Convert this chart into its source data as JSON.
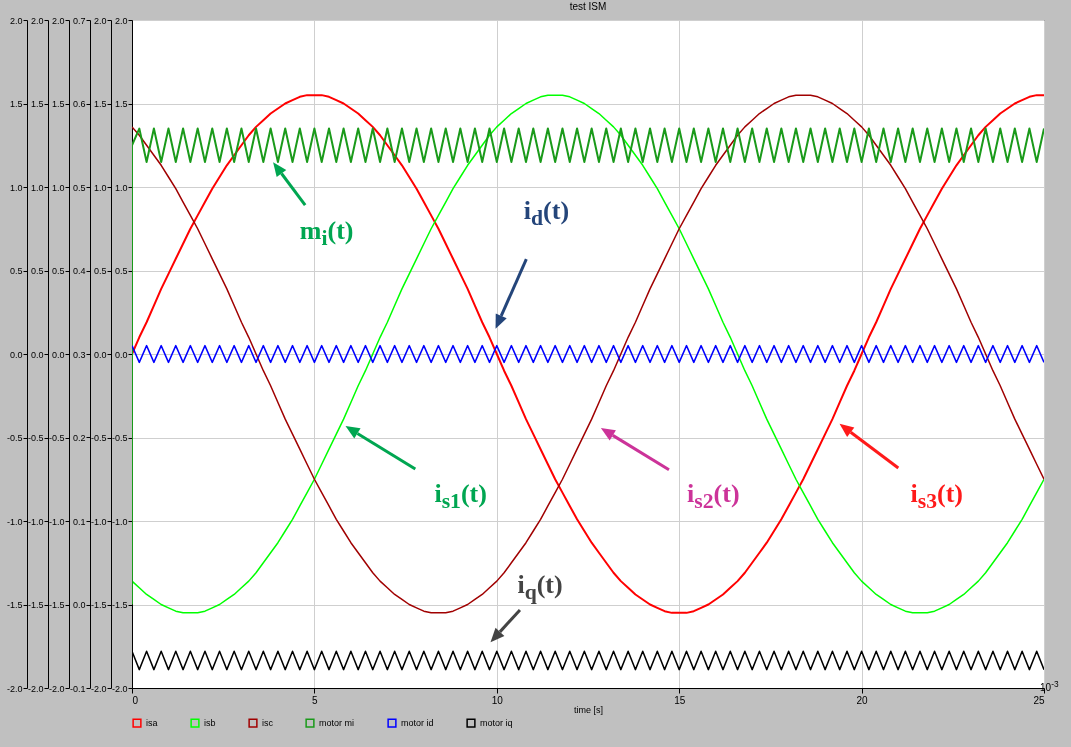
{
  "chart_data": {
    "type": "line",
    "title": "test ISM",
    "xlabel": "time [s]",
    "x": [
      0,
      0.2,
      0.4,
      0.6,
      0.8,
      1,
      1.2,
      1.4,
      1.6,
      1.8,
      2,
      2.2,
      2.4,
      2.6,
      2.8,
      3,
      3.2,
      3.4,
      3.6,
      3.8,
      4,
      4.2,
      4.4,
      4.6,
      4.8,
      5,
      5.2,
      5.4,
      5.6,
      5.8,
      6,
      6.2,
      6.4,
      6.6,
      6.8,
      7,
      7.2,
      7.4,
      7.6,
      7.8,
      8,
      8.2,
      8.4,
      8.6,
      8.8,
      9,
      9.2,
      9.4,
      9.6,
      9.8,
      10,
      10.2,
      10.4,
      10.6,
      10.8,
      11,
      11.2,
      11.4,
      11.6,
      11.8,
      12,
      12.2,
      12.4,
      12.6,
      12.8,
      13,
      13.2,
      13.4,
      13.6,
      13.8,
      14,
      14.2,
      14.4,
      14.6,
      14.8,
      15,
      15.2,
      15.4,
      15.6,
      15.8,
      16,
      16.2,
      16.4,
      16.6,
      16.8,
      17,
      17.2,
      17.4,
      17.6,
      17.8,
      18,
      18.2,
      18.4,
      18.6,
      18.8,
      19,
      19.2,
      19.4,
      19.6,
      19.8,
      20,
      20.2,
      20.4,
      20.6,
      20.8,
      21,
      21.2,
      21.4,
      21.6,
      21.8,
      22,
      22.2,
      22.4,
      22.6,
      22.8,
      23,
      23.2,
      23.4,
      23.6,
      23.8,
      24,
      24.2,
      24.4,
      24.6,
      24.8,
      25
    ],
    "xlim": [
      0,
      25
    ],
    "xticks": [
      0,
      5,
      10,
      15,
      20,
      25
    ],
    "ylim": [
      -2,
      2
    ],
    "yticks": [
      {
        "value": -2,
        "label": "-2.0"
      },
      {
        "value": -1.5,
        "label": "-1.5"
      },
      {
        "value": -1,
        "label": "-1.0"
      },
      {
        "value": -0.5,
        "label": "-0.5"
      },
      {
        "value": 0,
        "label": "0.0"
      },
      {
        "value": 0.5,
        "label": "0.5"
      },
      {
        "value": 1,
        "label": "1.0"
      },
      {
        "value": 1.5,
        "label": "1.5"
      },
      {
        "value": 2,
        "label": "2.0"
      }
    ],
    "y2lim": [
      -0.1,
      0.7
    ],
    "y2ticks": [
      -0.1,
      {
        "value": 0,
        "label": "0.0"
      },
      0.1,
      0.2,
      0.3,
      0.4,
      0.5,
      0.6,
      0.7
    ],
    "grid": true,
    "legend": "bottom",
    "series": [
      {
        "name": "isa",
        "color": "#ff0000",
        "axis": "y",
        "values": [
          0,
          0.1,
          0.19,
          0.29,
          0.39,
          0.48,
          0.57,
          0.66,
          0.75,
          0.83,
          0.91,
          0.99,
          1.06,
          1.13,
          1.19,
          1.25,
          1.31,
          1.36,
          1.4,
          1.44,
          1.47,
          1.5,
          1.52,
          1.54,
          1.55,
          1.55,
          1.55,
          1.54,
          1.52,
          1.5,
          1.47,
          1.44,
          1.4,
          1.36,
          1.31,
          1.25,
          1.19,
          1.13,
          1.06,
          0.99,
          0.91,
          0.83,
          0.75,
          0.66,
          0.57,
          0.48,
          0.39,
          0.29,
          0.19,
          0.1,
          0,
          -0.1,
          -0.19,
          -0.29,
          -0.39,
          -0.48,
          -0.57,
          -0.66,
          -0.75,
          -0.83,
          -0.91,
          -0.99,
          -1.06,
          -1.13,
          -1.19,
          -1.25,
          -1.31,
          -1.36,
          -1.4,
          -1.44,
          -1.47,
          -1.5,
          -1.52,
          -1.54,
          -1.55,
          -1.55,
          -1.55,
          -1.54,
          -1.52,
          -1.5,
          -1.47,
          -1.44,
          -1.4,
          -1.36,
          -1.31,
          -1.25,
          -1.19,
          -1.13,
          -1.06,
          -0.99,
          -0.91,
          -0.83,
          -0.75,
          -0.66,
          -0.57,
          -0.48,
          -0.39,
          -0.29,
          -0.19,
          -0.1,
          0,
          0.1,
          0.19,
          0.29,
          0.39,
          0.48,
          0.57,
          0.66,
          0.75,
          0.83,
          0.91,
          0.99,
          1.06,
          1.13,
          1.19,
          1.25,
          1.31,
          1.36,
          1.4,
          1.44,
          1.47,
          1.5,
          1.52,
          1.54,
          1.55,
          1.55
        ]
      },
      {
        "name": "isb",
        "color": "#00ff00",
        "axis": "y",
        "values": [
          -1.36,
          -1.4,
          -1.44,
          -1.47,
          -1.5,
          -1.52,
          -1.54,
          -1.55,
          -1.55,
          -1.55,
          -1.54,
          -1.52,
          -1.5,
          -1.47,
          -1.44,
          -1.4,
          -1.36,
          -1.31,
          -1.25,
          -1.19,
          -1.13,
          -1.06,
          -0.99,
          -0.91,
          -0.83,
          -0.75,
          -0.66,
          -0.57,
          -0.48,
          -0.39,
          -0.29,
          -0.19,
          -0.1,
          0,
          0.1,
          0.19,
          0.29,
          0.39,
          0.48,
          0.57,
          0.66,
          0.75,
          0.83,
          0.91,
          0.99,
          1.06,
          1.13,
          1.19,
          1.25,
          1.31,
          1.36,
          1.4,
          1.44,
          1.47,
          1.5,
          1.52,
          1.54,
          1.55,
          1.55,
          1.55,
          1.54,
          1.52,
          1.5,
          1.47,
          1.44,
          1.4,
          1.36,
          1.31,
          1.25,
          1.19,
          1.13,
          1.06,
          0.99,
          0.91,
          0.83,
          0.75,
          0.66,
          0.57,
          0.48,
          0.39,
          0.29,
          0.19,
          0.1,
          0,
          -0.1,
          -0.19,
          -0.29,
          -0.39,
          -0.48,
          -0.57,
          -0.66,
          -0.75,
          -0.83,
          -0.91,
          -0.99,
          -1.06,
          -1.13,
          -1.19,
          -1.25,
          -1.31,
          -1.36,
          -1.4,
          -1.44,
          -1.47,
          -1.5,
          -1.52,
          -1.54,
          -1.55,
          -1.55,
          -1.55,
          -1.54,
          -1.52,
          -1.5,
          -1.47,
          -1.44,
          -1.4,
          -1.36,
          -1.31,
          -1.25,
          -1.19,
          -1.13,
          -1.06,
          -0.99,
          -0.91,
          -0.83,
          -0.75
        ]
      },
      {
        "name": "isc",
        "color": "#a00000",
        "axis": "y",
        "values": [
          1.36,
          1.31,
          1.25,
          1.19,
          1.13,
          1.06,
          0.99,
          0.91,
          0.83,
          0.75,
          0.66,
          0.57,
          0.48,
          0.39,
          0.29,
          0.19,
          0.1,
          0,
          -0.1,
          -0.19,
          -0.29,
          -0.39,
          -0.48,
          -0.57,
          -0.66,
          -0.75,
          -0.83,
          -0.91,
          -0.99,
          -1.06,
          -1.13,
          -1.19,
          -1.25,
          -1.31,
          -1.36,
          -1.4,
          -1.44,
          -1.47,
          -1.5,
          -1.52,
          -1.54,
          -1.55,
          -1.55,
          -1.55,
          -1.54,
          -1.52,
          -1.5,
          -1.47,
          -1.44,
          -1.4,
          -1.36,
          -1.31,
          -1.25,
          -1.19,
          -1.13,
          -1.06,
          -0.99,
          -0.91,
          -0.83,
          -0.75,
          -0.66,
          -0.57,
          -0.48,
          -0.39,
          -0.29,
          -0.19,
          -0.1,
          0,
          0.1,
          0.19,
          0.29,
          0.39,
          0.48,
          0.57,
          0.66,
          0.75,
          0.83,
          0.91,
          0.99,
          1.06,
          1.13,
          1.19,
          1.25,
          1.31,
          1.36,
          1.4,
          1.44,
          1.47,
          1.5,
          1.52,
          1.54,
          1.55,
          1.55,
          1.55,
          1.54,
          1.52,
          1.5,
          1.47,
          1.44,
          1.4,
          1.36,
          1.31,
          1.25,
          1.19,
          1.13,
          1.06,
          0.99,
          0.91,
          0.83,
          0.75,
          0.66,
          0.57,
          0.48,
          0.39,
          0.29,
          0.19,
          0.1,
          0,
          -0.1,
          -0.19,
          -0.29,
          -0.39,
          -0.48,
          -0.57,
          -0.66,
          -0.75
        ]
      },
      {
        "name": "motor mi",
        "color": "#1a9a1a",
        "axis": "y2",
        "x": [
          0,
          0,
          0.2,
          0.4,
          0.6,
          0.8,
          1,
          1.2,
          1.4,
          1.6,
          1.8,
          2,
          2.2,
          2.4,
          2.6,
          2.8,
          3,
          3.2,
          3.4,
          3.6,
          3.8,
          4,
          4.2,
          4.4,
          4.6,
          4.8,
          5,
          5.2,
          5.4,
          5.6,
          5.8,
          6,
          6.2,
          6.4,
          6.6,
          6.8,
          7,
          7.2,
          7.4,
          7.6,
          7.8,
          8,
          8.2,
          8.4,
          8.6,
          8.8,
          9,
          9.2,
          9.4,
          9.6,
          9.8,
          10,
          10.2,
          10.4,
          10.6,
          10.8,
          11,
          11.2,
          11.4,
          11.6,
          11.8,
          12,
          12.2,
          12.4,
          12.6,
          12.8,
          13,
          13.2,
          13.4,
          13.6,
          13.8,
          14,
          14.2,
          14.4,
          14.6,
          14.8,
          15,
          15.2,
          15.4,
          15.6,
          15.8,
          16,
          16.2,
          16.4,
          16.6,
          16.8,
          17,
          17.2,
          17.4,
          17.6,
          17.8,
          18,
          18.2,
          18.4,
          18.6,
          18.8,
          19,
          19.2,
          19.4,
          19.6,
          19.8,
          20,
          20.2,
          20.4,
          20.6,
          20.8,
          21,
          21.2,
          21.4,
          21.6,
          21.8,
          22,
          22.2,
          22.4,
          22.6,
          22.8,
          23,
          23.2,
          23.4,
          23.6,
          23.8,
          24,
          24.2,
          24.4,
          24.6,
          24.8,
          25
        ],
        "values": [
          0,
          0.55,
          0.57,
          0.53,
          0.57,
          0.53,
          0.57,
          0.53,
          0.57,
          0.53,
          0.57,
          0.53,
          0.57,
          0.53,
          0.57,
          0.53,
          0.57,
          0.53,
          0.57,
          0.53,
          0.57,
          0.53,
          0.57,
          0.53,
          0.57,
          0.53,
          0.57,
          0.53,
          0.57,
          0.53,
          0.57,
          0.53,
          0.57,
          0.53,
          0.57,
          0.53,
          0.57,
          0.53,
          0.57,
          0.53,
          0.57,
          0.53,
          0.57,
          0.53,
          0.57,
          0.53,
          0.57,
          0.53,
          0.57,
          0.53,
          0.57,
          0.53,
          0.57,
          0.53,
          0.57,
          0.53,
          0.57,
          0.53,
          0.57,
          0.53,
          0.57,
          0.53,
          0.57,
          0.53,
          0.57,
          0.53,
          0.57,
          0.53,
          0.57,
          0.53,
          0.57,
          0.53,
          0.57,
          0.53,
          0.57,
          0.53,
          0.57,
          0.53,
          0.57,
          0.53,
          0.57,
          0.53,
          0.57,
          0.53,
          0.57,
          0.53,
          0.57,
          0.53,
          0.57,
          0.53,
          0.57,
          0.53,
          0.57,
          0.53,
          0.57,
          0.53,
          0.57,
          0.53,
          0.57,
          0.53,
          0.57,
          0.53,
          0.57,
          0.53,
          0.57,
          0.53,
          0.57,
          0.53,
          0.57,
          0.53,
          0.57,
          0.53,
          0.57,
          0.53,
          0.57,
          0.53,
          0.57,
          0.53,
          0.57,
          0.53,
          0.57,
          0.53,
          0.57,
          0.53,
          0.57,
          0.53,
          0.57
        ]
      },
      {
        "name": "motor id",
        "color": "#0000ff",
        "axis": "y",
        "values": [
          0.05,
          -0.05,
          0.05,
          -0.05,
          0.05,
          -0.05,
          0.05,
          -0.05,
          0.05,
          -0.05,
          0.05,
          -0.05,
          0.05,
          -0.05,
          0.05,
          -0.05,
          0.05,
          -0.05,
          0.05,
          -0.05,
          0.05,
          -0.05,
          0.05,
          -0.05,
          0.05,
          -0.05,
          0.05,
          -0.05,
          0.05,
          -0.05,
          0.05,
          -0.05,
          0.05,
          -0.05,
          0.05,
          -0.05,
          0.05,
          -0.05,
          0.05,
          -0.05,
          0.05,
          -0.05,
          0.05,
          -0.05,
          0.05,
          -0.05,
          0.05,
          -0.05,
          0.05,
          -0.05,
          0.05,
          -0.05,
          0.05,
          -0.05,
          0.05,
          -0.05,
          0.05,
          -0.05,
          0.05,
          -0.05,
          0.05,
          -0.05,
          0.05,
          -0.05,
          0.05,
          -0.05,
          0.05,
          -0.05,
          0.05,
          -0.05,
          0.05,
          -0.05,
          0.05,
          -0.05,
          0.05,
          -0.05,
          0.05,
          -0.05,
          0.05,
          -0.05,
          0.05,
          -0.05,
          0.05,
          -0.05,
          0.05,
          -0.05,
          0.05,
          -0.05,
          0.05,
          -0.05,
          0.05,
          -0.05,
          0.05,
          -0.05,
          0.05,
          -0.05,
          0.05,
          -0.05,
          0.05,
          -0.05,
          0.05,
          -0.05,
          0.05,
          -0.05,
          0.05,
          -0.05,
          0.05,
          -0.05,
          0.05,
          -0.05,
          0.05,
          -0.05,
          0.05,
          -0.05,
          0.05,
          -0.05,
          0.05,
          -0.05,
          0.05,
          -0.05,
          0.05,
          -0.05,
          0.05,
          -0.05,
          0.05,
          -0.05
        ]
      },
      {
        "name": "motor iq",
        "color": "#000000",
        "axis": "y",
        "values": [
          -1.78,
          -1.89,
          -1.78,
          -1.89,
          -1.78,
          -1.89,
          -1.78,
          -1.89,
          -1.78,
          -1.89,
          -1.78,
          -1.89,
          -1.78,
          -1.89,
          -1.78,
          -1.89,
          -1.78,
          -1.89,
          -1.78,
          -1.89,
          -1.78,
          -1.89,
          -1.78,
          -1.89,
          -1.78,
          -1.89,
          -1.78,
          -1.89,
          -1.78,
          -1.89,
          -1.78,
          -1.89,
          -1.78,
          -1.89,
          -1.78,
          -1.89,
          -1.78,
          -1.89,
          -1.78,
          -1.89,
          -1.78,
          -1.89,
          -1.78,
          -1.89,
          -1.78,
          -1.89,
          -1.78,
          -1.89,
          -1.78,
          -1.89,
          -1.78,
          -1.89,
          -1.78,
          -1.89,
          -1.78,
          -1.89,
          -1.78,
          -1.89,
          -1.78,
          -1.89,
          -1.78,
          -1.89,
          -1.78,
          -1.89,
          -1.78,
          -1.89,
          -1.78,
          -1.89,
          -1.78,
          -1.89,
          -1.78,
          -1.89,
          -1.78,
          -1.89,
          -1.78,
          -1.89,
          -1.78,
          -1.89,
          -1.78,
          -1.89,
          -1.78,
          -1.89,
          -1.78,
          -1.89,
          -1.78,
          -1.89,
          -1.78,
          -1.89,
          -1.78,
          -1.89,
          -1.78,
          -1.89,
          -1.78,
          -1.89,
          -1.78,
          -1.89,
          -1.78,
          -1.89,
          -1.78,
          -1.89,
          -1.78,
          -1.89,
          -1.78,
          -1.89,
          -1.78,
          -1.89,
          -1.78,
          -1.89,
          -1.78,
          -1.89,
          -1.78,
          -1.89,
          -1.78,
          -1.89,
          -1.78,
          -1.89,
          -1.78,
          -1.89,
          -1.78,
          -1.89,
          -1.78,
          -1.89,
          -1.78,
          -1.89,
          -1.78,
          -1.89
        ]
      }
    ],
    "annotations": [
      "m$_{i}$(t)",
      "i$_{d}$(t)",
      "i$_{s1}$(t)",
      "i$_{s2}$(t)",
      "i$_{s3}$(t)",
      "i$_{q}$(t)",
      "10$^{-3}$"
    ]
  }
}
